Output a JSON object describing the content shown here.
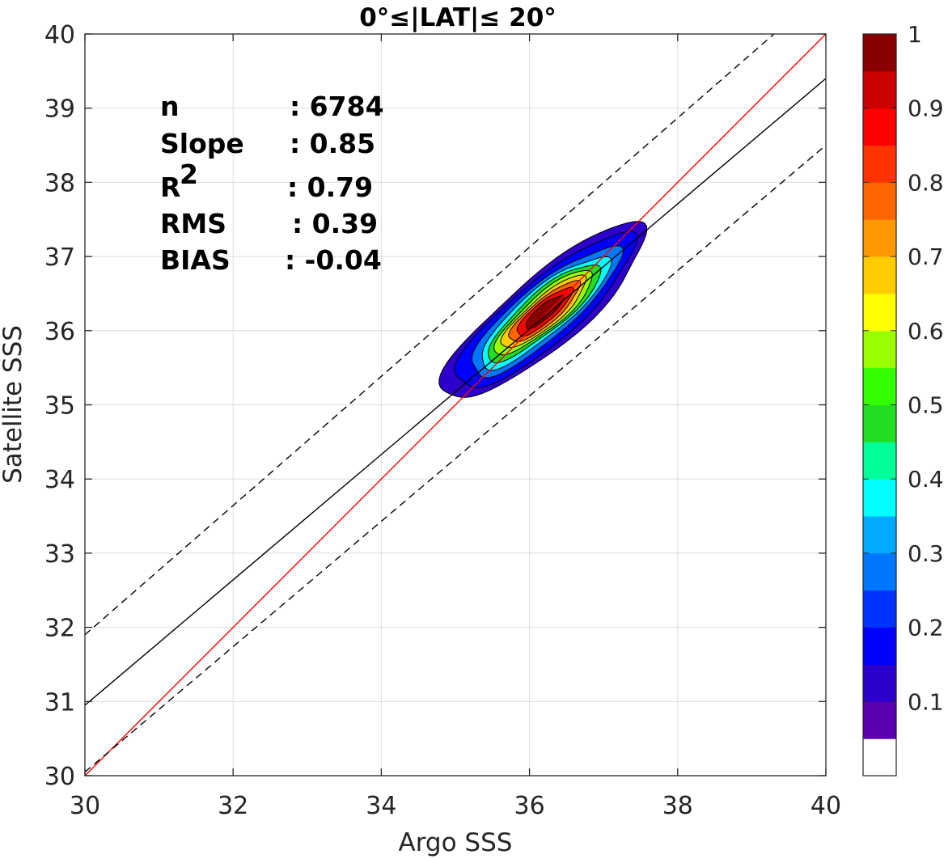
{
  "chart_data": {
    "type": "contour-scatter-density",
    "title": "0°≤|LAT|≤ 20°",
    "xlabel": "Argo SSS",
    "ylabel": "Satellite SSS",
    "xlim": [
      30,
      40
    ],
    "ylim": [
      30,
      40
    ],
    "xticks": [
      30,
      32,
      34,
      36,
      38,
      40
    ],
    "yticks": [
      30,
      31,
      32,
      33,
      34,
      35,
      36,
      37,
      38,
      39,
      40
    ],
    "grid": true,
    "stats": [
      {
        "label": "n",
        "value": ": 6784"
      },
      {
        "label": "Slope",
        "value": ": 0.85"
      },
      {
        "label": "R",
        "sup": "2",
        "value": ": 0.79"
      },
      {
        "label": "RMS",
        "value": ": 0.39"
      },
      {
        "label": "BIAS",
        "value": ": -0.04"
      }
    ],
    "lines": [
      {
        "name": "1:1",
        "color": "#ff0000",
        "style": "solid",
        "x": [
          30,
          40
        ],
        "y": [
          30,
          40
        ]
      },
      {
        "name": "fit",
        "color": "#000000",
        "style": "solid",
        "x": [
          30,
          40
        ],
        "y": [
          30.95,
          39.4
        ]
      },
      {
        "name": "fit+",
        "color": "#000000",
        "style": "dashed",
        "x": [
          30,
          39.3
        ],
        "y": [
          31.9,
          40
        ]
      },
      {
        "name": "fit-",
        "color": "#000000",
        "style": "dashed",
        "x": [
          30,
          40
        ],
        "y": [
          30.05,
          38.5
        ]
      }
    ],
    "density": {
      "center": [
        36.2,
        36.25
      ],
      "angle_deg": 40,
      "peak": 1.0,
      "contour_levels": [
        0.05,
        0.1,
        0.2,
        0.3,
        0.4,
        0.5,
        0.6,
        0.7,
        0.8,
        0.9
      ]
    },
    "colorbar": {
      "ticks": [
        0.1,
        0.2,
        0.3,
        0.4,
        0.5,
        0.6,
        0.7,
        0.8,
        0.9,
        1
      ],
      "tick_labels": [
        "0.1",
        "0.2",
        "0.3",
        "0.4",
        "0.5",
        "0.6",
        "0.7",
        "0.8",
        "0.9",
        "1"
      ],
      "colors": [
        "#ffffff",
        "#5a00b0",
        "#2e00cc",
        "#0000ff",
        "#0033ff",
        "#0077ff",
        "#00aaff",
        "#00ffff",
        "#00ff99",
        "#22dd22",
        "#33ff00",
        "#99ff00",
        "#ffff00",
        "#ffcc00",
        "#ff9900",
        "#ff6600",
        "#ff3300",
        "#ff0000",
        "#cc0000",
        "#880000"
      ]
    }
  }
}
